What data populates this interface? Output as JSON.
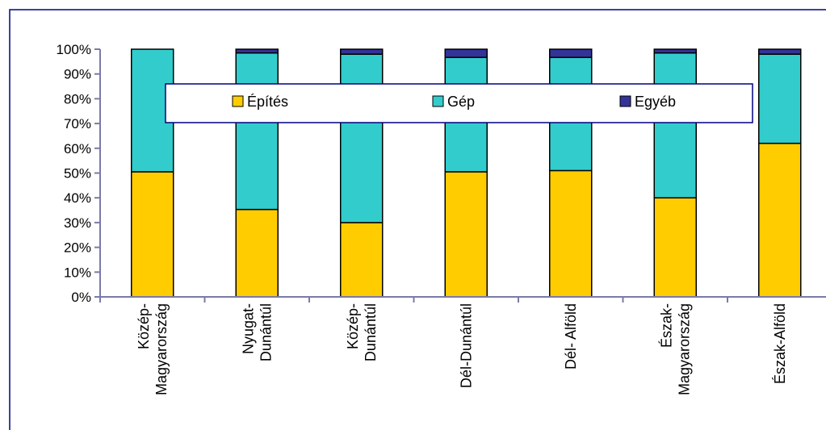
{
  "chart_data": {
    "type": "bar",
    "stacked": true,
    "percent": true,
    "categories": [
      [
        "Közép-",
        "Magyarország"
      ],
      [
        "Nyugat-",
        "Dunántúl"
      ],
      [
        "Közép-",
        "Dunántúl"
      ],
      [
        "Dél-Dunántúl"
      ],
      [
        "Dél- Alföld"
      ],
      [
        "Észak-",
        "Magyarország"
      ],
      [
        "Észak-Alföld"
      ]
    ],
    "series": [
      {
        "name": "Építés",
        "color": "#FFCC00",
        "values": [
          50.5,
          35.3,
          30.0,
          50.5,
          51.0,
          40.0,
          62.0
        ]
      },
      {
        "name": "Gép",
        "color": "#33CCCC",
        "values": [
          49.5,
          63.2,
          68.0,
          46.2,
          45.7,
          58.5,
          36.0
        ]
      },
      {
        "name": "Egyéb",
        "color": "#333399",
        "values": [
          0.0,
          1.5,
          2.0,
          3.3,
          3.3,
          1.5,
          2.0
        ]
      }
    ],
    "ylim": [
      0,
      100
    ],
    "yticks": [
      "0%",
      "10%",
      "20%",
      "30%",
      "40%",
      "50%",
      "60%",
      "70%",
      "80%",
      "90%",
      "100%"
    ],
    "legend_position": "top-center",
    "grid": false,
    "title": "",
    "xlabel": "",
    "ylabel": ""
  }
}
